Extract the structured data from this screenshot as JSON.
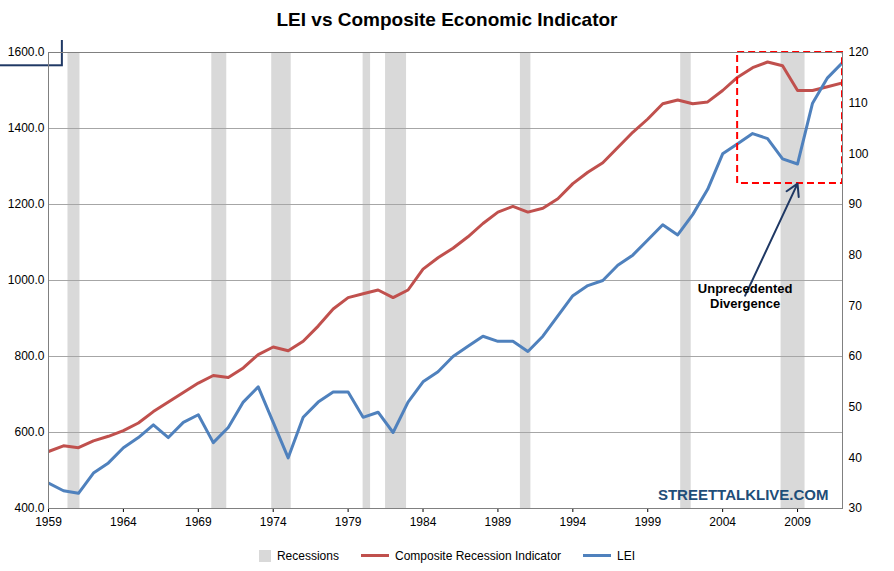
{
  "chart_data": {
    "type": "line",
    "title": "LEI vs Composite Economic Indicator",
    "source": "STREETTALKLIVE.COM",
    "x": [
      1959,
      1960,
      1961,
      1962,
      1963,
      1964,
      1965,
      1966,
      1967,
      1968,
      1969,
      1970,
      1971,
      1972,
      1973,
      1974,
      1975,
      1976,
      1977,
      1978,
      1979,
      1980,
      1981,
      1982,
      1983,
      1984,
      1985,
      1986,
      1987,
      1988,
      1989,
      1990,
      1991,
      1992,
      1993,
      1994,
      1995,
      1996,
      1997,
      1998,
      1999,
      2000,
      2001,
      2002,
      2003,
      2004,
      2005,
      2006,
      2007,
      2008,
      2009,
      2010,
      2011,
      2012
    ],
    "series": [
      {
        "name": "Composite Recession Indicator",
        "color": "#c0504d",
        "values": [
          550,
          565,
          560,
          578,
          590,
          605,
          625,
          655,
          680,
          705,
          730,
          750,
          745,
          770,
          805,
          825,
          815,
          840,
          880,
          925,
          955,
          965,
          975,
          955,
          975,
          1030,
          1060,
          1085,
          1115,
          1150,
          1180,
          1195,
          1180,
          1190,
          1215,
          1255,
          1285,
          1310,
          1350,
          1390,
          1425,
          1465,
          1475,
          1465,
          1470,
          1500,
          1535,
          1560,
          1575,
          1565,
          1500,
          1500,
          1510,
          1520
        ]
      },
      {
        "name": "LEI",
        "color": "#4f81bd",
        "axis": "y2",
        "values": [
          35,
          33.5,
          33,
          37,
          39,
          42,
          44,
          46.5,
          44,
          47,
          48.5,
          43,
          46,
          51,
          54,
          47,
          40,
          48,
          51,
          53,
          53,
          48,
          49,
          45,
          51,
          55,
          57,
          60,
          62,
          64,
          63,
          63,
          61,
          64,
          68,
          72,
          74,
          75,
          78,
          80,
          83,
          86,
          84,
          88,
          93,
          100,
          102,
          104,
          103,
          99,
          98,
          110,
          115,
          118
        ]
      }
    ],
    "bands": {
      "name": "Recessions",
      "color": "#d9d9d9",
      "ranges": [
        [
          1960.3,
          1961.1
        ],
        [
          1969.9,
          1970.9
        ],
        [
          1973.9,
          1975.2
        ],
        [
          1980.0,
          1980.5
        ],
        [
          1981.5,
          1982.9
        ],
        [
          1990.5,
          1991.2
        ],
        [
          2001.2,
          2001.9
        ],
        [
          2007.9,
          2009.5
        ]
      ]
    },
    "annotations": [
      {
        "text": "Unprecedented Divergence",
        "x": 2005.5,
        "y": 960,
        "target": {
          "x": 2009,
          "y": 1255
        },
        "box": {
          "x": [
            2005,
            2012
          ],
          "y": [
            1255,
            1600
          ],
          "color": "#ff0000",
          "line_style": "dashed"
        }
      }
    ],
    "xlim": [
      1959,
      2012
    ],
    "xticks": [
      1959,
      1964,
      1969,
      1974,
      1979,
      1984,
      1989,
      1994,
      1999,
      2004,
      2009
    ],
    "ylim": [
      400,
      1600
    ],
    "yticks": [
      {
        "value": 400,
        "label": "400.0"
      },
      {
        "value": 600,
        "label": "600.0"
      },
      {
        "value": 800,
        "label": "800.0"
      },
      {
        "value": 1000,
        "label": "1000.0"
      },
      {
        "value": 1200,
        "label": "1200.0"
      },
      {
        "value": 1400,
        "label": "1400.0"
      },
      {
        "value": 1600,
        "label": "1600.0"
      }
    ],
    "y2lim": [
      30,
      120
    ],
    "y2ticks": [
      30,
      40,
      50,
      60,
      70,
      80,
      90,
      100,
      110,
      120
    ],
    "grid": true,
    "legend": "bottom"
  }
}
